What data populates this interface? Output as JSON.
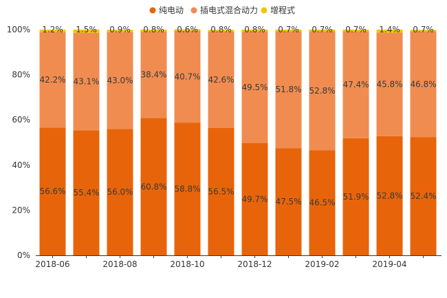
{
  "chart_data": {
    "type": "bar",
    "stacked": true,
    "percent": true,
    "title": "",
    "xlabel": "",
    "ylabel": "",
    "ylim": [
      0,
      100
    ],
    "grid": false,
    "legend_position": "top-center",
    "y_ticks": [
      "0%",
      "20%",
      "40%",
      "60%",
      "80%",
      "100%"
    ],
    "x_tick_labels": [
      "2018-06",
      "2018-08",
      "2018-10",
      "2018-12",
      "2019-02",
      "2019-04"
    ],
    "categories": [
      "2018-06",
      "2018-07",
      "2018-08",
      "2018-09",
      "2018-10",
      "2018-11",
      "2018-12",
      "2019-01",
      "2019-02",
      "2019-03",
      "2019-04",
      "2019-05"
    ],
    "series": [
      {
        "name": "纯电动",
        "color": "#E8640A",
        "values": [
          56.6,
          55.4,
          56.0,
          60.8,
          58.8,
          56.5,
          49.7,
          47.5,
          46.5,
          51.9,
          52.8,
          52.4
        ],
        "labels": [
          "56.6%",
          "55.4%",
          "56.0%",
          "60.8%",
          "58.8%",
          "56.5%",
          "49.7%",
          "47.5%",
          "46.5%",
          "51.9%",
          "52.8%",
          "52.4%"
        ]
      },
      {
        "name": "插电式混合动力",
        "color": "#F08C50",
        "values": [
          42.2,
          43.1,
          43.0,
          38.4,
          40.7,
          42.6,
          49.5,
          51.8,
          52.8,
          47.4,
          45.8,
          46.8
        ],
        "labels": [
          "42.2%",
          "43.1%",
          "43.0%",
          "38.4%",
          "40.7%",
          "42.6%",
          "49.5%",
          "51.8%",
          "52.8%",
          "47.4%",
          "45.8%",
          "46.8%"
        ]
      },
      {
        "name": "增程式",
        "color": "#F2C30F",
        "values": [
          1.2,
          1.5,
          0.9,
          0.8,
          0.6,
          0.8,
          0.8,
          0.7,
          0.7,
          0.7,
          1.4,
          0.7
        ],
        "labels": [
          "1.2%",
          "1.5%",
          "0.9%",
          "0.8%",
          "0.6%",
          "0.8%",
          "0.8%",
          "0.7%",
          "0.7%",
          "0.7%",
          "1.4%",
          "0.7%"
        ]
      }
    ]
  }
}
